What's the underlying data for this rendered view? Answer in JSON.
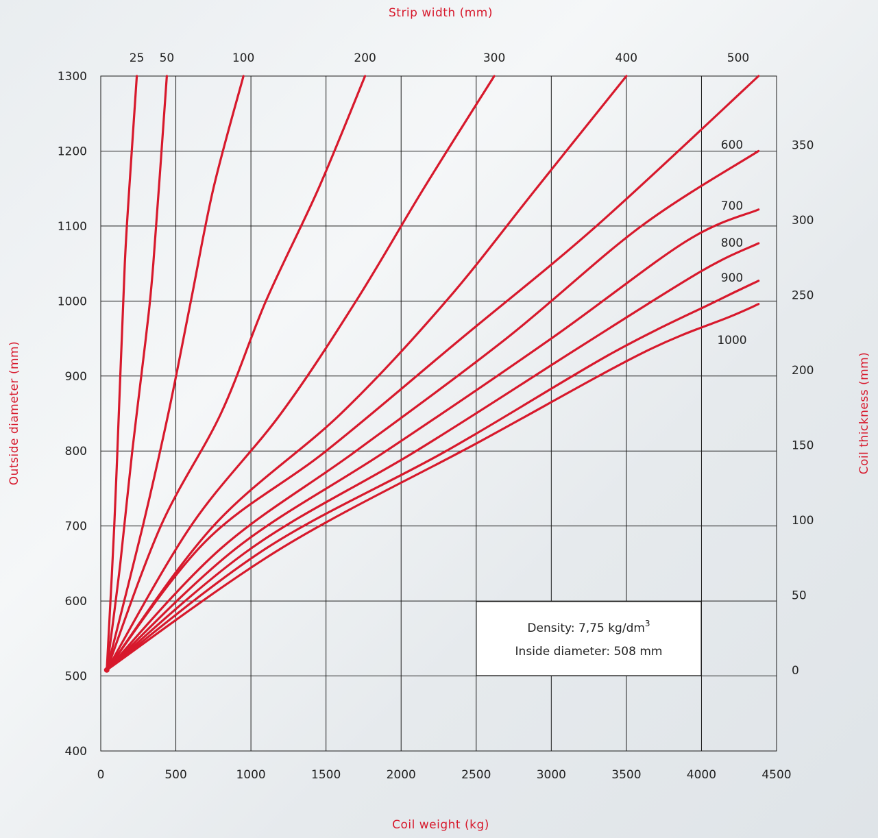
{
  "chart_data": {
    "type": "line",
    "title": "",
    "xlabel": "Coil weight (kg)",
    "ylabel": "Outside diameter  (mm)",
    "top_label": "Strip width (mm)",
    "right_label": "Coil thickness (mm)",
    "xlim": [
      0,
      4500
    ],
    "ylim": [
      400,
      1300
    ],
    "x_ticks": [
      "0",
      "500",
      "1000",
      "1500",
      "2000",
      "2500",
      "3000",
      "3500",
      "4000",
      "4500"
    ],
    "y_ticks": [
      "400",
      "500",
      "600",
      "700",
      "800",
      "900",
      "1000",
      "1100",
      "1200",
      "1300"
    ],
    "right_ticks": [
      {
        "label": "0",
        "at_diameter": 508
      },
      {
        "label": "50",
        "at_diameter": 608
      },
      {
        "label": "100",
        "at_diameter": 708
      },
      {
        "label": "150",
        "at_diameter": 808
      },
      {
        "label": "200",
        "at_diameter": 908
      },
      {
        "label": "250",
        "at_diameter": 1008
      },
      {
        "label": "300",
        "at_diameter": 1108
      },
      {
        "label": "350",
        "at_diameter": 1208
      }
    ],
    "density_kg_per_dm3": 7.75,
    "inside_diameter_mm": 508,
    "grid": true,
    "series": [
      {
        "name": "25",
        "width_mm": 25,
        "x": [
          40,
          90,
          130,
          160,
          190,
          240
        ],
        "y": [
          508,
          700,
          900,
          1050,
          1150,
          1300
        ]
      },
      {
        "name": "50",
        "width_mm": 50,
        "x": [
          40,
          130,
          210,
          300,
          350,
          440
        ],
        "y": [
          508,
          650,
          800,
          950,
          1050,
          1300
        ]
      },
      {
        "name": "100",
        "width_mm": 100,
        "x": [
          40,
          280,
          450,
          600,
          750,
          950
        ],
        "y": [
          508,
          700,
          850,
          1000,
          1150,
          1300
        ]
      },
      {
        "name": "200",
        "width_mm": 200,
        "x": [
          40,
          400,
          800,
          1100,
          1450,
          1760
        ],
        "y": [
          508,
          700,
          850,
          1000,
          1150,
          1300
        ]
      },
      {
        "name": "300",
        "width_mm": 300,
        "x": [
          40,
          600,
          1200,
          1700,
          2150,
          2620
        ],
        "y": [
          508,
          700,
          850,
          1000,
          1150,
          1300
        ]
      },
      {
        "name": "400",
        "width_mm": 400,
        "x": [
          40,
          750,
          1600,
          2300,
          2900,
          3500
        ],
        "y": [
          508,
          700,
          850,
          1000,
          1150,
          1300
        ]
      },
      {
        "name": "500",
        "width_mm": 500,
        "x": [
          40,
          700,
          1500,
          2400,
          3300,
          4380
        ],
        "y": [
          508,
          680,
          800,
          950,
          1100,
          1300
        ]
      },
      {
        "name": "600",
        "width_mm": 600,
        "x": [
          40,
          800,
          1700,
          2700,
          3600,
          4380
        ],
        "y": [
          508,
          670,
          800,
          950,
          1100,
          1200
        ]
      },
      {
        "name": "700",
        "width_mm": 700,
        "x": [
          40,
          900,
          1900,
          3000,
          3900,
          4380
        ],
        "y": [
          508,
          670,
          800,
          950,
          1080,
          1122
        ]
      },
      {
        "name": "800",
        "width_mm": 800,
        "x": [
          40,
          1000,
          2100,
          3200,
          4000,
          4380
        ],
        "y": [
          508,
          670,
          800,
          940,
          1040,
          1077
        ]
      },
      {
        "name": "900",
        "width_mm": 900,
        "x": [
          40,
          1100,
          2300,
          3400,
          4100,
          4380
        ],
        "y": [
          508,
          670,
          800,
          930,
          1000,
          1027
        ]
      },
      {
        "name": "1000",
        "width_mm": 1000,
        "x": [
          40,
          1200,
          2500,
          3600,
          4200,
          4380
        ],
        "y": [
          508,
          670,
          810,
          930,
          980,
          996
        ]
      }
    ]
  },
  "note": {
    "density_prefix": "Density: 7,75 kg/dm",
    "density_sup": "3",
    "inside": "Inside diameter: 508 mm"
  }
}
